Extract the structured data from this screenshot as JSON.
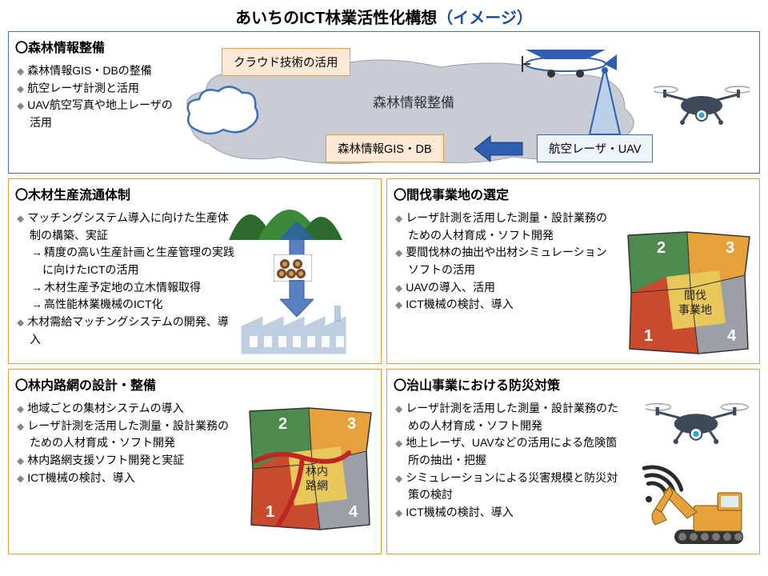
{
  "title_main": "あいちのICT林業活性化構想",
  "title_paren": "（イメージ）",
  "colors": {
    "top_border": "#3c6fb8",
    "orange_border": "#e69a3a",
    "cloud_tag_bg": "#fde9d6",
    "cloud_tag_border": "#e69a3a",
    "gis_tag_bg": "#fde9d6",
    "gis_tag_border": "#e69a3a",
    "laser_tag_bg": "#eef4fb",
    "laser_tag_border": "#3c6fb8",
    "arrow_blue": "#2f5fb0",
    "big_cloud": "#c8ccd4",
    "small_cloud_fill": "#ffffff",
    "small_cloud_stroke": "#3c6fb8",
    "hill1": "#3a8a3a",
    "hill2": "#2c6b2c",
    "factory": "#8aa8cc",
    "parcel_green": "#4d8a4d",
    "parcel_orange": "#e6a13a",
    "parcel_gray": "#9aa0a6",
    "parcel_red": "#c94a2c",
    "parcel_blue": "#6e8fb8",
    "parcel_yellow": "#e8c85a",
    "road_red": "#c02525",
    "drone_body": "#3d4a5c",
    "drone_eye": "#2aa8d8",
    "plane_blue": "#2f5fb0",
    "excavator": "#e6a13a",
    "wifi": "#2a2a2a"
  },
  "sections": {
    "top": {
      "title": "〇森林情報整備",
      "bullets": [
        "森林情報GIS・DBの整備",
        "航空レーザ計測と活用",
        "UAV航空写真や地上レーザの活用"
      ],
      "cloud_label": "クラウド技術の活用",
      "center_label": "森林情報整備",
      "gis_label": "森林情報GIS・DB",
      "laser_label": "航空レーザ・UAV"
    },
    "wood": {
      "title": "〇木材生産流通体制",
      "bullets": [
        {
          "t": "マッチングシステム導入に向けた生産体制の構築、実証",
          "subs": [
            "精度の高い生産計画と生産管理の実践に向けたICTの活用",
            "木材生産予定地の立木情報取得",
            "高性能林業機械のICT化"
          ]
        },
        {
          "t": "木材需給マッチングシステムの開発、導入"
        }
      ]
    },
    "thinning": {
      "title": "〇間伐事業地の選定",
      "bullets": [
        "レーザ計測を活用した測量・設計業務のための人材育成・ソフト開発",
        "要間伐林の抽出や出材シミュレーションソフトの活用",
        "UAVの導入、活用",
        "ICT機械の検討、導入"
      ],
      "map_label": "間伐\n事業地",
      "nums": [
        "1",
        "2",
        "3",
        "4"
      ]
    },
    "road": {
      "title": "〇林内路網の設計・整備",
      "bullets": [
        "地域ごとの集材システムの導入",
        "レーザ計測を活用した測量・設計業務のための人材育成・ソフト開発",
        "林内路網支援ソフト開発と実証",
        "ICT機械の検討、導入"
      ],
      "map_label": "林内\n路網",
      "nums": [
        "1",
        "2",
        "3",
        "4"
      ]
    },
    "disaster": {
      "title": "〇治山事業における防災対策",
      "bullets": [
        "レーザ計測を活用した測量・設計業務のための人材育成・ソフト開発",
        "地上レーザ、UAVなどの活用による危険箇所の抽出・把握",
        "シミュレーションによる災害規模と防災対策の検討",
        "ICT機械の検討、導入"
      ]
    }
  }
}
